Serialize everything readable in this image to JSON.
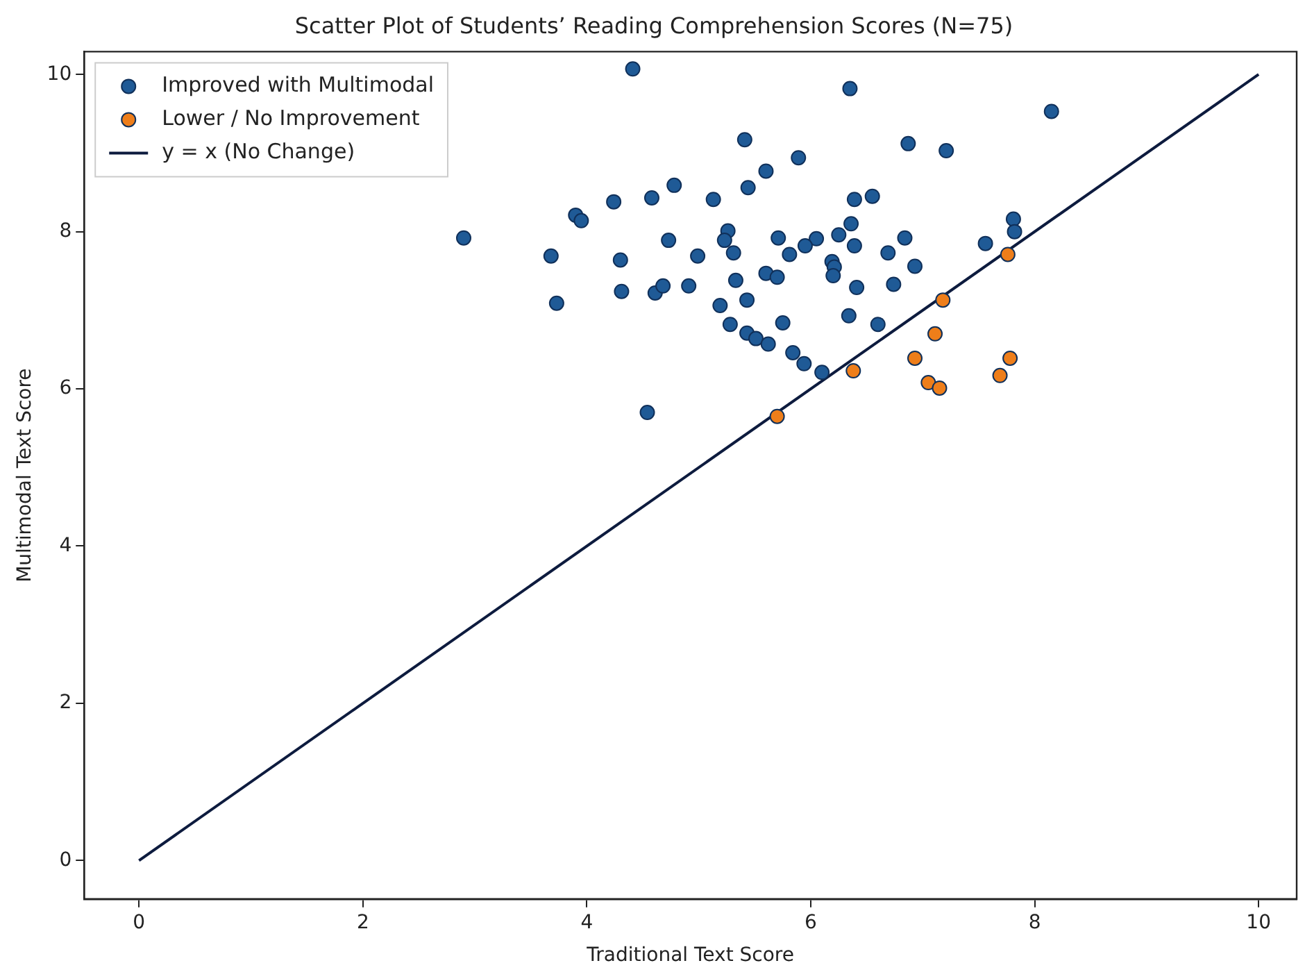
{
  "chart_data": {
    "type": "scatter",
    "title": "Scatter Plot of Students’ Reading Comprehension Scores (N=75)",
    "xlabel": "Traditional Text Score",
    "ylabel": "Multimodal Text Score",
    "xlim": [
      -0.49,
      10.34
    ],
    "ylim": [
      -0.49,
      10.29
    ],
    "xticks": [
      0,
      2,
      4,
      6,
      8,
      10
    ],
    "yticks": [
      0,
      2,
      4,
      6,
      8,
      10
    ],
    "grid": false,
    "legend": "top left",
    "marker": "circle",
    "series": [
      {
        "name": "Improved with Multimodal",
        "color": "#1f5a96",
        "x": [
          4.41,
          5.41,
          5.6,
          4.78,
          5.44,
          4.24,
          4.58,
          5.13,
          3.9,
          3.95,
          2.9,
          3.68,
          4.73,
          5.26,
          5.23,
          5.31,
          4.3,
          4.99,
          5.6,
          5.33,
          3.73,
          4.31,
          4.61,
          4.68,
          4.91,
          5.19,
          5.43,
          5.28,
          5.43,
          5.51,
          4.54,
          6.35,
          8.15,
          6.87,
          7.21,
          5.89,
          6.39,
          6.55,
          6.36,
          7.81,
          7.82,
          5.71,
          6.05,
          5.95,
          6.25,
          6.84,
          6.39,
          7.56,
          5.81,
          6.69,
          6.19,
          6.21,
          6.93,
          6.2,
          5.7,
          6.41,
          6.74,
          5.75,
          6.34,
          6.6,
          5.62,
          5.84,
          5.94,
          6.1
        ],
        "values": [
          10.07,
          9.17,
          8.77,
          8.59,
          8.56,
          8.38,
          8.43,
          8.41,
          8.21,
          8.14,
          7.92,
          7.69,
          7.89,
          8.01,
          7.89,
          7.73,
          7.64,
          7.69,
          7.47,
          7.38,
          7.09,
          7.24,
          7.22,
          7.31,
          7.31,
          7.06,
          7.13,
          6.82,
          6.71,
          6.64,
          5.7,
          9.82,
          9.53,
          9.12,
          9.03,
          8.94,
          8.41,
          8.45,
          8.1,
          8.16,
          8.0,
          7.92,
          7.91,
          7.82,
          7.96,
          7.92,
          7.82,
          7.85,
          7.71,
          7.73,
          7.62,
          7.55,
          7.56,
          7.44,
          7.42,
          7.29,
          7.33,
          6.84,
          6.93,
          6.82,
          6.57,
          6.46,
          6.32,
          6.21
        ]
      },
      {
        "name": "Lower / No Improvement",
        "color": "#ee7e1a",
        "x": [
          7.76,
          7.18,
          7.11,
          6.93,
          7.78,
          7.69,
          7.05,
          7.15,
          6.38,
          5.7
        ],
        "values": [
          7.71,
          7.13,
          6.7,
          6.39,
          6.39,
          6.17,
          6.08,
          6.01,
          6.23,
          5.65
        ]
      },
      {
        "name": "y = x (No Change)",
        "type": "line",
        "color": "#0d1b3e",
        "line_style": "solid",
        "marker": "none",
        "x": [
          0,
          10
        ],
        "values": [
          0,
          10
        ]
      }
    ]
  }
}
